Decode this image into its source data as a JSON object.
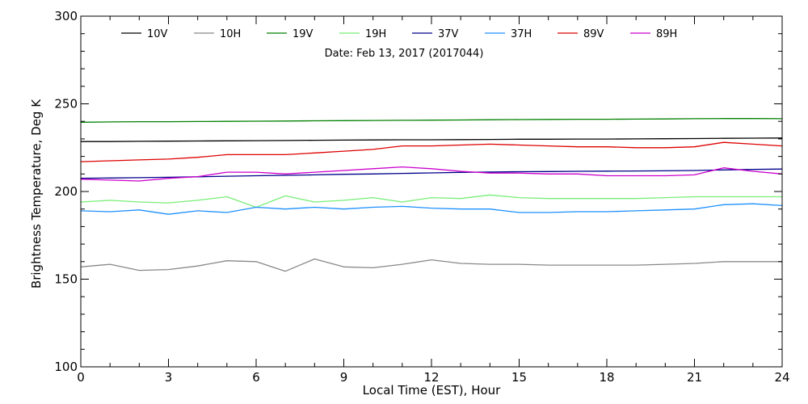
{
  "chart_data": {
    "type": "line",
    "xlabel": "Local Time (EST), Hour",
    "ylabel": "Brightness Temperature, Deg K",
    "annotation": "Date: Feb 13, 2017 (2017044)",
    "xlim": [
      0,
      24
    ],
    "ylim": [
      100,
      300
    ],
    "xticks": [
      0,
      3,
      6,
      9,
      12,
      15,
      18,
      21,
      24
    ],
    "yticks": [
      100,
      150,
      200,
      250,
      300
    ],
    "grid": false,
    "legend_placement": "top",
    "x": [
      0,
      1,
      2,
      3,
      4,
      5,
      6,
      7,
      8,
      9,
      10,
      11,
      12,
      13,
      14,
      15,
      16,
      17,
      18,
      19,
      20,
      21,
      22,
      23,
      24
    ],
    "series": [
      {
        "name": "10V",
        "color": "#000000",
        "values": [
          228.5,
          228.5,
          228.6,
          228.7,
          228.8,
          228.9,
          229.0,
          229.1,
          229.2,
          229.3,
          229.4,
          229.5,
          229.5,
          229.6,
          229.7,
          229.8,
          229.8,
          229.9,
          229.9,
          230.0,
          230.1,
          230.2,
          230.3,
          230.4,
          230.5
        ]
      },
      {
        "name": "10H",
        "color": "#888888",
        "values": [
          157,
          158.5,
          155,
          155.5,
          157.5,
          160.5,
          160,
          154.5,
          161.5,
          157,
          156.5,
          158.5,
          161,
          159,
          158.5,
          158.5,
          158,
          158,
          158,
          158,
          158.5,
          159,
          160,
          160,
          160
        ]
      },
      {
        "name": "19V",
        "color": "#008000",
        "values": [
          239.5,
          239.7,
          239.8,
          239.8,
          239.9,
          240,
          240.1,
          240.2,
          240.3,
          240.4,
          240.5,
          240.6,
          240.7,
          240.8,
          240.9,
          241,
          241.1,
          241.2,
          241.2,
          241.3,
          241.4,
          241.5,
          241.6,
          241.6,
          241.5
        ]
      },
      {
        "name": "19H",
        "color": "#77ee77",
        "values": [
          194,
          195,
          194,
          193.5,
          195,
          197,
          191,
          197.5,
          194,
          195,
          196.5,
          194,
          196.5,
          196,
          198,
          196.5,
          196,
          196,
          196,
          196,
          196.5,
          197,
          197,
          197,
          197
        ]
      },
      {
        "name": "37V",
        "color": "#00008b",
        "values": [
          207.5,
          207.7,
          207.9,
          208.1,
          208.4,
          208.7,
          209,
          209.2,
          209.5,
          209.8,
          210,
          210.3,
          210.6,
          210.9,
          211.1,
          211.3,
          211.4,
          211.5,
          211.6,
          211.7,
          211.8,
          212,
          212.3,
          212.6,
          212.8
        ]
      },
      {
        "name": "37H",
        "color": "#1e90ff",
        "values": [
          189,
          188.5,
          189.5,
          187,
          189,
          188,
          191,
          190,
          191,
          190,
          191,
          191.5,
          190.5,
          190,
          190,
          188,
          188,
          188.5,
          188.5,
          189,
          189.5,
          190,
          192.5,
          193,
          192
        ]
      },
      {
        "name": "89V",
        "color": "#dd0000",
        "values": [
          217,
          217.5,
          218,
          218.5,
          219.5,
          221,
          221,
          221,
          222,
          223,
          224,
          226,
          226,
          226.5,
          227,
          226.5,
          226,
          225.5,
          225.5,
          225,
          225,
          225.5,
          228,
          227,
          226
        ]
      },
      {
        "name": "89H",
        "color": "#cc00cc",
        "values": [
          207,
          206.5,
          206,
          207.5,
          208.5,
          211,
          211,
          210,
          211,
          212,
          213,
          214,
          213,
          211.5,
          210.5,
          210.5,
          210,
          210,
          209,
          209,
          209,
          209.5,
          213.5,
          211.5,
          210
        ]
      }
    ]
  }
}
